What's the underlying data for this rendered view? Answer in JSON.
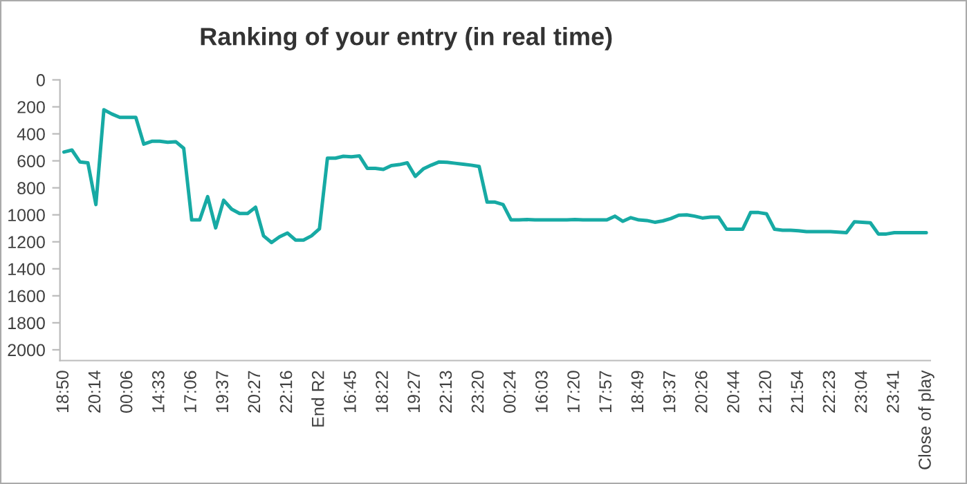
{
  "chart_data": {
    "type": "line",
    "title": "Ranking of your entry (in real time)",
    "categories": [
      "18:50",
      null,
      null,
      null,
      "20:14",
      null,
      null,
      null,
      "00:06",
      null,
      null,
      null,
      "14:33",
      null,
      null,
      null,
      "17:06",
      null,
      null,
      null,
      "19:37",
      null,
      null,
      null,
      "20:27",
      null,
      null,
      null,
      "22:16",
      null,
      null,
      null,
      "End R2",
      null,
      null,
      null,
      "16:45",
      null,
      null,
      null,
      "18:22",
      null,
      null,
      null,
      "19:27",
      null,
      null,
      null,
      "22:13",
      null,
      null,
      null,
      "23:20",
      null,
      null,
      null,
      "00:24",
      null,
      null,
      null,
      "16:03",
      null,
      null,
      null,
      "17:20",
      null,
      null,
      null,
      "17:57",
      null,
      null,
      null,
      "18:49",
      null,
      null,
      null,
      "19:37",
      null,
      null,
      null,
      "20:26",
      null,
      null,
      null,
      "20:44",
      null,
      null,
      null,
      "21:20",
      null,
      null,
      null,
      "21:54",
      null,
      null,
      null,
      "22:23",
      null,
      null,
      null,
      "23:04",
      null,
      null,
      null,
      "23:41",
      null,
      null,
      null,
      "Close of play"
    ],
    "series": [
      {
        "color": "#17aaa4",
        "values": [
          535,
          520,
          608,
          615,
          924,
          222,
          253,
          278,
          278,
          278,
          476,
          455,
          455,
          462,
          458,
          507,
          1038,
          1038,
          865,
          1097,
          892,
          958,
          990,
          990,
          944,
          1156,
          1205,
          1163,
          1135,
          1187,
          1187,
          1156,
          1104,
          580,
          580,
          566,
          570,
          563,
          656,
          656,
          663,
          635,
          628,
          615,
          715,
          660,
          632,
          608,
          611,
          618,
          625,
          632,
          642,
          906,
          906,
          924,
          1038,
          1038,
          1035,
          1038,
          1038,
          1038,
          1038,
          1038,
          1035,
          1038,
          1038,
          1038,
          1038,
          1010,
          1048,
          1021,
          1038,
          1042,
          1055,
          1045,
          1028,
          1003,
          1000,
          1010,
          1024,
          1017,
          1017,
          1107,
          1107,
          1107,
          983,
          983,
          993,
          1107,
          1114,
          1114,
          1118,
          1125,
          1125,
          1125,
          1125,
          1128,
          1132,
          1052,
          1055,
          1059,
          1142,
          1142,
          1132,
          1132,
          1132,
          1132,
          1132
        ]
      }
    ],
    "ylim": [
      2080,
      0
    ],
    "yticks": [
      0,
      200,
      400,
      600,
      800,
      1000,
      1200,
      1400,
      1600,
      1800,
      2000
    ],
    "grid": false,
    "legend": false,
    "marker": "none",
    "line_style": "solid"
  }
}
